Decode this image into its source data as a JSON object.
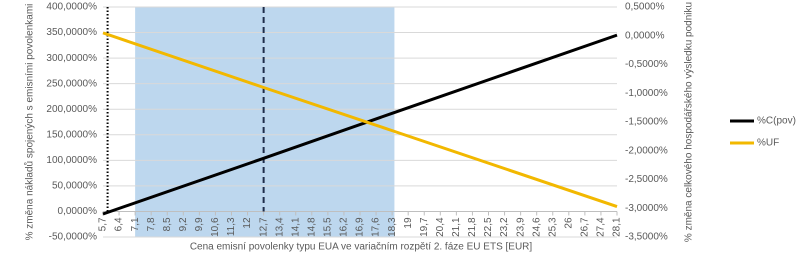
{
  "chart_data": {
    "type": "line",
    "x_label": "Cena emisní povolenky typu EUA ve variačním rozpětí 2. fáze EU ETS [EUR]",
    "y_label": "% změna nákladů spojených s emisními povolenkami",
    "y2_label": "% změna celkového hospodářského výsledku podniku",
    "xlim": [
      5.7,
      28.1
    ],
    "xticks": [
      {
        "value": 5.7,
        "label": "5,7"
      },
      {
        "value": 6.4,
        "label": "6,4"
      },
      {
        "value": 7.1,
        "label": "7,1"
      },
      {
        "value": 7.8,
        "label": "7,8"
      },
      {
        "value": 8.5,
        "label": "8,5"
      },
      {
        "value": 9.2,
        "label": "9,2"
      },
      {
        "value": 9.9,
        "label": "9,9"
      },
      {
        "value": 10.6,
        "label": "10,6"
      },
      {
        "value": 11.3,
        "label": "11,3"
      },
      12,
      {
        "value": 12.7,
        "label": "12,7"
      },
      {
        "value": 13.4,
        "label": "13,4"
      },
      {
        "value": 14.1,
        "label": "14,1"
      },
      {
        "value": 14.8,
        "label": "14,8"
      },
      {
        "value": 15.5,
        "label": "15,5"
      },
      {
        "value": 16.2,
        "label": "16,2"
      },
      {
        "value": 16.9,
        "label": "16,9"
      },
      {
        "value": 17.6,
        "label": "17,6"
      },
      {
        "value": 18.3,
        "label": "18,3"
      },
      19,
      {
        "value": 19.7,
        "label": "19,7"
      },
      {
        "value": 20.4,
        "label": "20,4"
      },
      {
        "value": 21.1,
        "label": "21,1"
      },
      {
        "value": 21.8,
        "label": "21,8"
      },
      {
        "value": 22.5,
        "label": "22,5"
      },
      {
        "value": 23.2,
        "label": "23,2"
      },
      {
        "value": 23.9,
        "label": "23,9"
      },
      {
        "value": 24.6,
        "label": "24,6"
      },
      {
        "value": 25.3,
        "label": "25,3"
      },
      26,
      {
        "value": 26.7,
        "label": "26,7"
      },
      {
        "value": 27.4,
        "label": "27,4"
      },
      {
        "value": 28.1,
        "label": "28,1"
      }
    ],
    "ylim": [
      -50,
      400
    ],
    "yticks": [
      {
        "value": -50,
        "label": "-50,0000%"
      },
      {
        "value": 0,
        "label": "0,0000%"
      },
      {
        "value": 50,
        "label": "50,0000%"
      },
      {
        "value": 100,
        "label": "100,0000%"
      },
      {
        "value": 150,
        "label": "150,0000%"
      },
      {
        "value": 200,
        "label": "200,0000%"
      },
      {
        "value": 250,
        "label": "250,0000%"
      },
      {
        "value": 300,
        "label": "300,0000%"
      },
      {
        "value": 350,
        "label": "350,0000%"
      },
      {
        "value": 400,
        "label": "400,0000%"
      }
    ],
    "y2lim": [
      -3.5,
      0.5
    ],
    "y2ticks": [
      {
        "value": -3.5,
        "label": "-3,5000%"
      },
      {
        "value": -3,
        "label": "-3,0000%"
      },
      {
        "value": -2.5,
        "label": "-2,5000%"
      },
      {
        "value": -2,
        "label": "-2,0000%"
      },
      {
        "value": -1.5,
        "label": "-1,5000%"
      },
      {
        "value": -1,
        "label": "-1,0000%"
      },
      {
        "value": -0.5,
        "label": "-0,5000%"
      },
      {
        "value": 0,
        "label": "0,0000%"
      },
      {
        "value": 0.5,
        "label": "0,5000%"
      }
    ],
    "grid": true,
    "shaded_range": [
      7.1,
      18.4
    ],
    "shade_color": "#bdd7ee",
    "dashed_line_x": 12.7,
    "dotted_line_x": 5.9,
    "x": [
      5.7,
      12.7,
      18.3,
      28.1
    ],
    "series": [
      {
        "name": "%C(pov)",
        "color": "#000000",
        "values": [
          -5,
          104,
          192,
          345
        ]
      },
      {
        "name": "%UF",
        "color": "#f2b800",
        "axis": "y2",
        "values": [
          0.05,
          -0.9,
          -1.65,
          -2.97
        ]
      }
    ],
    "legend": "right"
  }
}
